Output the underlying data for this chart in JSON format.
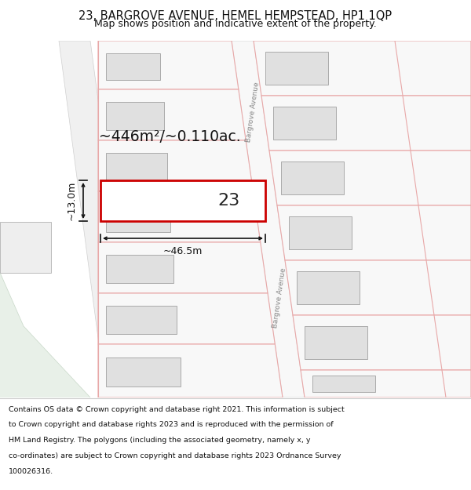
{
  "title_line1": "23, BARGROVE AVENUE, HEMEL HEMPSTEAD, HP1 1QP",
  "title_line2": "Map shows position and indicative extent of the property.",
  "footer_lines": [
    "Contains OS data © Crown copyright and database right 2021. This information is subject",
    "to Crown copyright and database rights 2023 and is reproduced with the permission of",
    "HM Land Registry. The polygons (including the associated geometry, namely x, y",
    "co-ordinates) are subject to Crown copyright and database rights 2023 Ordnance Survey",
    "100026316."
  ],
  "bg_color": "#ffffff",
  "plot_outline_color": "#cc0000",
  "area_label": "~446m²/~0.110ac.",
  "number_label": "23",
  "dim_width": "~46.5m",
  "dim_height": "~13.0m",
  "road_label": "Bargrove Avenue",
  "footer_bg": "#ffffff",
  "title_bg": "#ffffff",
  "neighbor_edge": "#e8a8a8",
  "building_fill": "#e0e0e0",
  "building_edge": "#aaaaaa",
  "green_fill": "#e8f0e8",
  "plot_fill": "#ffffff",
  "road_label_color": "#888888"
}
